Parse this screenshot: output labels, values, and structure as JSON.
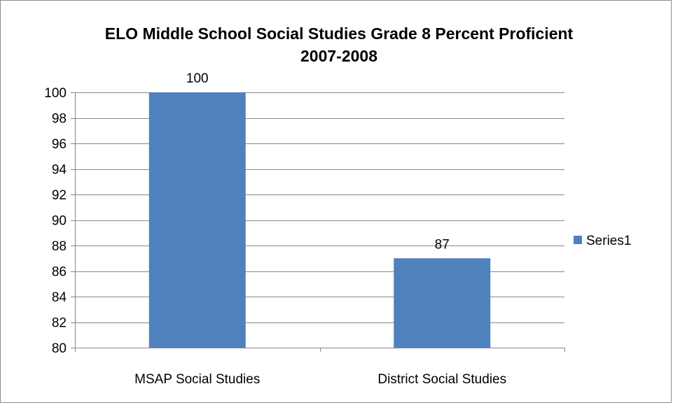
{
  "chart_data": {
    "type": "bar",
    "title_lines": [
      "ELO Middle School Social Studies Grade 8 Percent Proficient",
      "2007-2008"
    ],
    "categories": [
      "MSAP Social Studies",
      "District Social Studies"
    ],
    "series": [
      {
        "name": "Series1",
        "values": [
          100,
          87
        ],
        "color": "#4f81bd"
      }
    ],
    "data_labels": [
      "100",
      "87"
    ],
    "ylim": [
      80,
      100
    ],
    "yticks": [
      80,
      82,
      84,
      86,
      88,
      90,
      92,
      94,
      96,
      98,
      100
    ],
    "xlabel": "",
    "ylabel": "",
    "grid": true,
    "legend_position": "right"
  }
}
